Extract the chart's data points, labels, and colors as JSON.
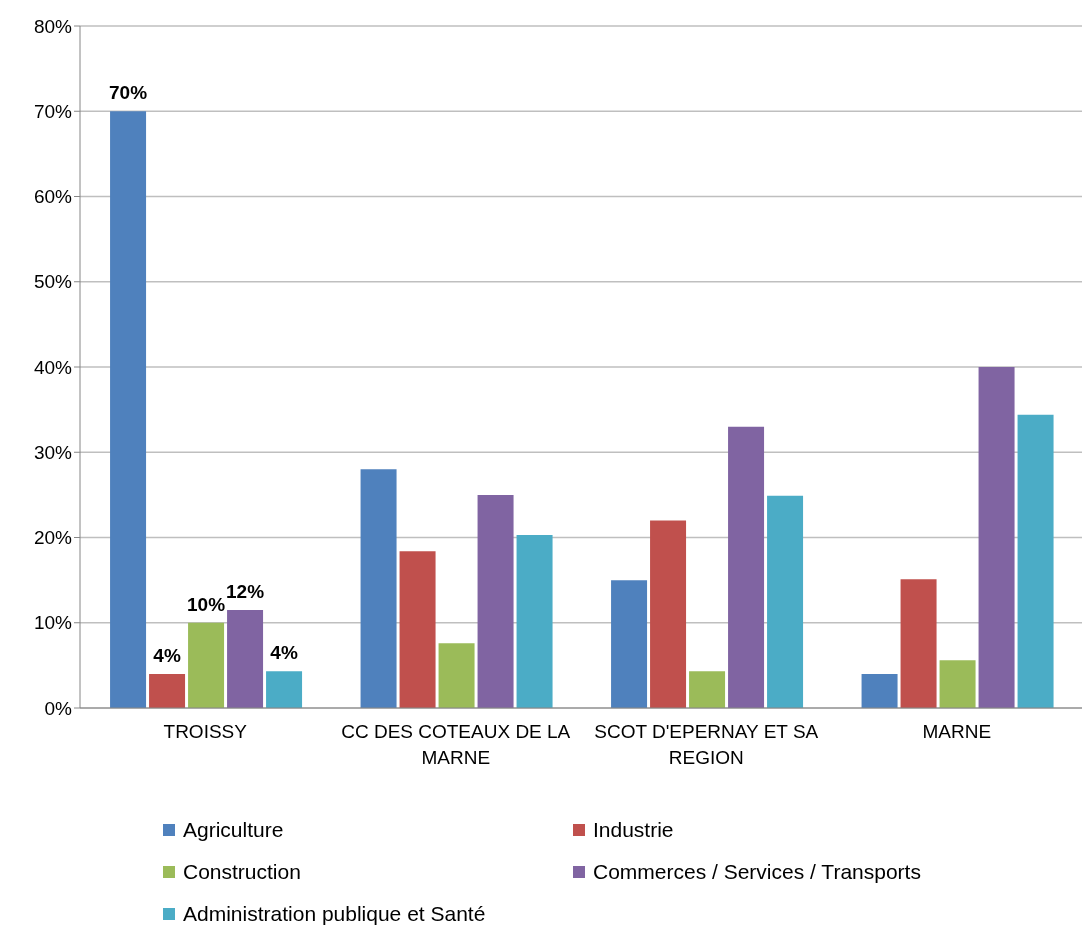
{
  "chart_data": {
    "type": "bar",
    "categories": [
      "TROISSY",
      "CC DES COTEAUX DE LA MARNE",
      "SCOT D'EPERNAY ET SA REGION",
      "MARNE"
    ],
    "series": [
      {
        "name": "Agriculture",
        "color": "#4f81bd",
        "values": [
          70,
          28,
          15,
          4
        ],
        "value_labels": [
          "70%",
          null,
          null,
          null
        ]
      },
      {
        "name": "Industrie",
        "color": "#c0504d",
        "values": [
          4,
          18.4,
          22,
          15.1
        ],
        "value_labels": [
          "4%",
          null,
          null,
          null
        ]
      },
      {
        "name": "Construction",
        "color": "#9bbb59",
        "values": [
          10,
          7.6,
          4.3,
          5.6
        ],
        "value_labels": [
          "10%",
          null,
          null,
          null
        ]
      },
      {
        "name": "Commerces / Services / Transports",
        "color": "#8064a2",
        "values": [
          11.5,
          25,
          33,
          40
        ],
        "value_labels": [
          "12%",
          null,
          null,
          null
        ]
      },
      {
        "name": "Administration publique et Santé",
        "color": "#4bacc6",
        "values": [
          4.3,
          20.3,
          24.9,
          34.4
        ],
        "value_labels": [
          "4%",
          null,
          null,
          null
        ]
      }
    ],
    "ylim": [
      0,
      80
    ],
    "yticks": [
      {
        "value": 0,
        "label": "0%"
      },
      {
        "value": 10,
        "label": "10%"
      },
      {
        "value": 20,
        "label": "20%"
      },
      {
        "value": 30,
        "label": "30%"
      },
      {
        "value": 40,
        "label": "40%"
      },
      {
        "value": 50,
        "label": "50%"
      },
      {
        "value": 60,
        "label": "60%"
      },
      {
        "value": 70,
        "label": "70%"
      },
      {
        "value": 80,
        "label": "80%"
      }
    ],
    "grid": "y",
    "legend": "bottom"
  }
}
